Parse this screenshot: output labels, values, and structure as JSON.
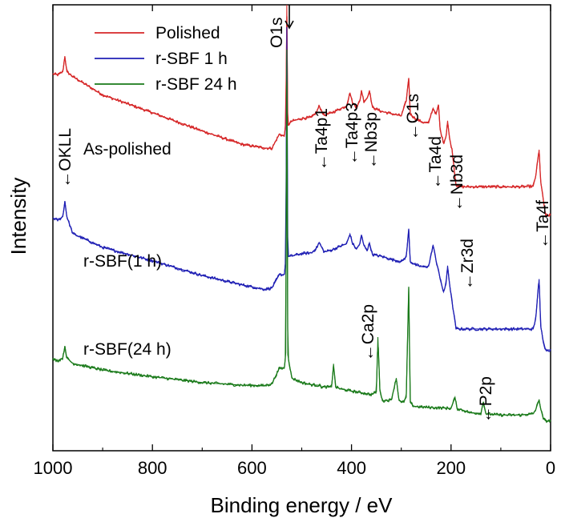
{
  "chart_data": {
    "type": "line",
    "xlabel": "Binding energy / eV",
    "ylabel": "Intensity",
    "xlim": [
      1000,
      0
    ],
    "x_reversed": true,
    "ylim": [
      0,
      100
    ],
    "xticks": [
      {
        "value": 1000,
        "label": "1000"
      },
      {
        "value": 800,
        "label": "800"
      },
      {
        "value": 600,
        "label": "600"
      },
      {
        "value": 400,
        "label": "400"
      },
      {
        "value": 200,
        "label": "200"
      },
      {
        "value": 0,
        "label": "0"
      }
    ],
    "grid": false,
    "legend_position": "top-left",
    "legend": [
      {
        "label": "Polished",
        "color": "#d62728"
      },
      {
        "label": "r-SBF 1 h",
        "color": "#1f1fb4"
      },
      {
        "label": "r-SBF 24 h",
        "color": "#1a7a1a"
      }
    ],
    "spectrum_labels": [
      {
        "text": "As-polished",
        "series": "Polished"
      },
      {
        "text": "r-SBF(1 h)",
        "series": "r-SBF 1 h"
      },
      {
        "text": "r-SBF(24 h)",
        "series": "r-SBF 24 h"
      }
    ],
    "annotations": [
      {
        "text": "OKLL",
        "energy": 976
      },
      {
        "text": "O1s",
        "energy": 531
      },
      {
        "text": "Ta4p1",
        "energy": 465
      },
      {
        "text": "Ta4p3",
        "energy": 403
      },
      {
        "text": "Nb3p",
        "energy": 378
      },
      {
        "text": "C1s",
        "energy": 285
      },
      {
        "text": "Ta4d",
        "energy": 237
      },
      {
        "text": "Nb3d",
        "energy": 207
      },
      {
        "text": "Zr3d",
        "energy": 182
      },
      {
        "text": "Ta4f",
        "energy": 23
      },
      {
        "text": "Ca2p",
        "energy": 347
      },
      {
        "text": "P2p",
        "energy": 133
      }
    ],
    "series": [
      {
        "name": "Polished",
        "color": "#d62728",
        "x": [
          1000,
          990,
          980,
          976,
          972,
          960,
          900,
          800,
          700,
          620,
          575,
          560,
          545,
          535,
          532,
          530,
          528,
          520,
          500,
          480,
          470,
          465,
          455,
          440,
          420,
          410,
          403,
          398,
          390,
          383,
          380,
          375,
          368,
          364,
          358,
          340,
          320,
          300,
          290,
          285,
          282,
          270,
          255,
          245,
          240,
          236,
          230,
          225,
          222,
          215,
          210,
          207,
          203,
          198,
          190,
          180,
          150,
          100,
          60,
          35,
          30,
          26,
          23,
          20,
          15,
          10,
          5,
          0
        ],
        "y": [
          84.5,
          84.3,
          85,
          88.5,
          85,
          83.9,
          79.8,
          75.8,
          71.7,
          68.7,
          67.9,
          67.8,
          71,
          70.5,
          74,
          100,
          73,
          73.9,
          74.5,
          74.8,
          76,
          77.3,
          75.2,
          75.8,
          76.8,
          77.3,
          80.3,
          78,
          77,
          78.5,
          80.8,
          78.3,
          79.2,
          80.8,
          77,
          76.1,
          75.6,
          75.1,
          78.5,
          83.6,
          75.5,
          74.3,
          73.6,
          73.5,
          75.5,
          76.8,
          75.5,
          77.5,
          72,
          69,
          70.5,
          74,
          70,
          67.5,
          59.6,
          59.2,
          59.2,
          59.2,
          59.2,
          59.3,
          61.5,
          65,
          67.5,
          60.5,
          56.5,
          52.8,
          52.8,
          52.8
        ]
      },
      {
        "name": "r-SBF 1 h",
        "color": "#1f1fb4",
        "x": [
          1000,
          990,
          980,
          976,
          972,
          960,
          900,
          800,
          700,
          620,
          575,
          560,
          545,
          535,
          532,
          530,
          528,
          520,
          500,
          480,
          470,
          465,
          455,
          440,
          420,
          410,
          403,
          398,
          390,
          383,
          380,
          375,
          368,
          364,
          358,
          340,
          320,
          300,
          290,
          285,
          282,
          270,
          255,
          245,
          240,
          236,
          230,
          225,
          222,
          215,
          210,
          207,
          203,
          198,
          190,
          180,
          150,
          100,
          60,
          35,
          30,
          26,
          23,
          20,
          15,
          10,
          5,
          0
        ],
        "y": [
          52.2,
          51.7,
          52.5,
          56,
          52.5,
          48.7,
          45.6,
          42.6,
          39.3,
          37.2,
          36.2,
          36.5,
          39.5,
          39.5,
          43,
          95,
          43.5,
          43.7,
          44.2,
          44.4,
          45.5,
          46.7,
          44.6,
          45,
          46,
          46.4,
          48.6,
          46.5,
          45.2,
          46.5,
          48.3,
          46,
          45,
          46.6,
          44,
          43.6,
          42.9,
          42.4,
          43.5,
          49.6,
          42.4,
          41.6,
          41.2,
          41.4,
          44,
          46.2,
          42.5,
          40.5,
          38.5,
          35.6,
          37.4,
          41.5,
          37.5,
          33.4,
          27.4,
          27.3,
          27.3,
          27.3,
          27.3,
          27.3,
          29.5,
          35,
          38.5,
          28,
          24.8,
          22.6,
          22.6,
          22.6
        ]
      },
      {
        "name": "r-SBF 24 h",
        "color": "#1a7a1a",
        "x": [
          1000,
          990,
          980,
          976,
          972,
          960,
          900,
          800,
          700,
          620,
          575,
          560,
          545,
          535,
          532,
          530,
          528,
          520,
          500,
          480,
          470,
          465,
          460,
          440,
          436,
          432,
          420,
          400,
          380,
          360,
          350,
          347,
          343,
          338,
          330,
          320,
          310,
          305,
          300,
          295,
          290,
          285,
          282,
          275,
          260,
          240,
          220,
          200,
          192,
          188,
          182,
          160,
          140,
          135,
          130,
          100,
          60,
          35,
          30,
          26,
          23,
          20,
          15,
          10,
          5,
          0
        ],
        "y": [
          20.5,
          20.2,
          20.8,
          23.5,
          20.8,
          19.6,
          18.1,
          16.6,
          15.3,
          14.7,
          14.6,
          15,
          18.5,
          18.5,
          22,
          90,
          21.5,
          16.3,
          15.3,
          14.8,
          14.7,
          14.7,
          14.3,
          14.3,
          19.5,
          14.3,
          13.8,
          13.4,
          13,
          12.6,
          13.2,
          25.5,
          13.8,
          11.2,
          11.3,
          11.4,
          16.3,
          11.6,
          10.8,
          11,
          12,
          36.5,
          10.8,
          10,
          9.8,
          9.7,
          9.6,
          9.5,
          12,
          9.4,
          9.3,
          8.5,
          8.4,
          11,
          8.3,
          8,
          8,
          8.3,
          9.2,
          10.5,
          11.5,
          9.5,
          7.3,
          6.7,
          6.7,
          6.7
        ]
      }
    ]
  }
}
